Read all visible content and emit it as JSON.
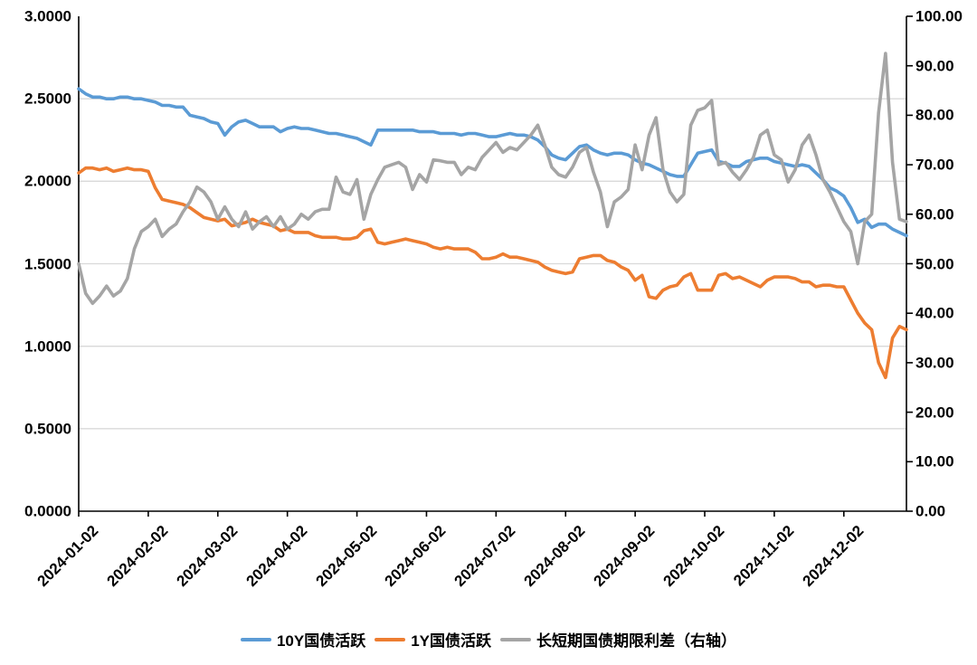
{
  "chart_data": {
    "type": "line",
    "title": "",
    "grid": "horizontal",
    "legend_position": "bottom",
    "left_axis": {
      "min": 0,
      "max": 3,
      "tick_values": [
        3.0,
        2.5,
        2.0,
        1.5,
        1.0,
        0.5,
        0.0
      ],
      "tick_labels": [
        "3.0000",
        "2.5000",
        "2.0000",
        "1.5000",
        "1.0000",
        "0.5000",
        "0.0000"
      ]
    },
    "right_axis": {
      "min": 0,
      "max": 100,
      "tick_values": [
        100,
        90,
        80,
        70,
        60,
        50,
        40,
        30,
        20,
        10,
        0
      ],
      "tick_labels": [
        "100.00",
        "90.00",
        "80.00",
        "70.00",
        "60.00",
        "50.00",
        "40.00",
        "30.00",
        "20.00",
        "10.00",
        "0.00"
      ]
    },
    "x_tick_labels": [
      "2024-01-02",
      "2024-02-02",
      "2024-03-02",
      "2024-04-02",
      "2024-05-02",
      "2024-06-02",
      "2024-07-02",
      "2024-08-02",
      "2024-09-02",
      "2024-10-02",
      "2024-11-02",
      "2024-12-02"
    ],
    "x_tick_indices": [
      0,
      10,
      20,
      30,
      40,
      50,
      60,
      70,
      80,
      90,
      100,
      110
    ],
    "series": [
      {
        "name": "10Y国债活跃",
        "axis": "left",
        "color": "#5B9BD5",
        "values": [
          2.56,
          2.53,
          2.51,
          2.51,
          2.5,
          2.5,
          2.51,
          2.51,
          2.5,
          2.5,
          2.49,
          2.48,
          2.46,
          2.46,
          2.45,
          2.45,
          2.4,
          2.39,
          2.38,
          2.36,
          2.35,
          2.28,
          2.33,
          2.36,
          2.37,
          2.35,
          2.33,
          2.33,
          2.33,
          2.3,
          2.32,
          2.33,
          2.32,
          2.32,
          2.31,
          2.3,
          2.29,
          2.29,
          2.28,
          2.27,
          2.26,
          2.24,
          2.22,
          2.31,
          2.31,
          2.31,
          2.31,
          2.31,
          2.31,
          2.3,
          2.3,
          2.3,
          2.29,
          2.29,
          2.29,
          2.28,
          2.29,
          2.29,
          2.28,
          2.27,
          2.27,
          2.28,
          2.29,
          2.28,
          2.28,
          2.27,
          2.25,
          2.21,
          2.16,
          2.14,
          2.13,
          2.17,
          2.21,
          2.22,
          2.19,
          2.17,
          2.16,
          2.17,
          2.17,
          2.16,
          2.13,
          2.11,
          2.1,
          2.08,
          2.06,
          2.04,
          2.03,
          2.03,
          2.1,
          2.17,
          2.18,
          2.19,
          2.12,
          2.11,
          2.09,
          2.09,
          2.12,
          2.13,
          2.14,
          2.14,
          2.12,
          2.11,
          2.1,
          2.09,
          2.1,
          2.09,
          2.05,
          2.01,
          1.96,
          1.94,
          1.91,
          1.84,
          1.75,
          1.77,
          1.72,
          1.74,
          1.74,
          1.71,
          1.69,
          1.67
        ]
      },
      {
        "name": "1Y国债活跃",
        "axis": "left",
        "color": "#ED7D31",
        "values": [
          2.05,
          2.08,
          2.08,
          2.07,
          2.08,
          2.06,
          2.07,
          2.08,
          2.07,
          2.07,
          2.06,
          1.96,
          1.89,
          1.88,
          1.87,
          1.86,
          1.84,
          1.81,
          1.78,
          1.77,
          1.76,
          1.77,
          1.73,
          1.74,
          1.75,
          1.77,
          1.75,
          1.74,
          1.73,
          1.7,
          1.71,
          1.69,
          1.69,
          1.69,
          1.67,
          1.66,
          1.66,
          1.66,
          1.65,
          1.65,
          1.66,
          1.7,
          1.71,
          1.63,
          1.62,
          1.63,
          1.64,
          1.65,
          1.64,
          1.63,
          1.62,
          1.6,
          1.59,
          1.6,
          1.59,
          1.59,
          1.59,
          1.57,
          1.53,
          1.53,
          1.54,
          1.56,
          1.54,
          1.54,
          1.53,
          1.52,
          1.51,
          1.48,
          1.46,
          1.45,
          1.44,
          1.45,
          1.53,
          1.54,
          1.55,
          1.55,
          1.52,
          1.51,
          1.48,
          1.46,
          1.4,
          1.43,
          1.3,
          1.29,
          1.34,
          1.36,
          1.37,
          1.42,
          1.44,
          1.34,
          1.34,
          1.34,
          1.43,
          1.44,
          1.41,
          1.42,
          1.4,
          1.38,
          1.36,
          1.4,
          1.42,
          1.42,
          1.42,
          1.41,
          1.39,
          1.39,
          1.36,
          1.37,
          1.37,
          1.36,
          1.36,
          1.28,
          1.2,
          1.14,
          1.1,
          0.9,
          0.81,
          1.05,
          1.12,
          1.1
        ]
      },
      {
        "name": "长短期国债期限利差（右轴）",
        "axis": "right",
        "color": "#A5A5A5",
        "values": [
          50,
          44,
          42,
          43.5,
          45.5,
          43.5,
          44.5,
          47,
          53,
          56.5,
          57.5,
          59,
          55.5,
          57,
          58,
          60.5,
          62.5,
          65.5,
          64.5,
          62.5,
          59,
          61.5,
          59,
          57.5,
          60.5,
          57,
          58.5,
          59.5,
          57.5,
          59.5,
          57,
          58,
          60,
          59,
          60.5,
          61,
          61,
          67.5,
          64.5,
          64,
          67,
          59,
          64,
          67,
          69.5,
          70,
          70.5,
          69.5,
          65,
          68,
          66.5,
          71,
          70.8,
          70.5,
          70.5,
          68,
          69.5,
          69,
          71.5,
          73,
          74.5,
          72.5,
          73.5,
          73,
          74.5,
          76,
          78,
          74,
          69.5,
          68,
          67.5,
          69.5,
          72.5,
          73.5,
          68.5,
          64.5,
          57.5,
          62.5,
          63.5,
          65,
          74,
          69,
          76,
          79.5,
          69,
          64.5,
          62.5,
          64,
          78,
          81,
          81.5,
          83,
          70,
          70.5,
          68.5,
          67,
          69,
          71.5,
          76,
          77,
          72,
          71,
          66.5,
          69,
          74,
          76,
          72,
          67,
          64.5,
          61.5,
          58.5,
          56.5,
          50,
          58.5,
          60,
          80.5,
          92.5,
          70.5,
          59,
          58.5
        ]
      }
    ]
  },
  "colors": {
    "grid": "#D9D9D9",
    "axis": "#000000",
    "background": "#FFFFFF"
  }
}
